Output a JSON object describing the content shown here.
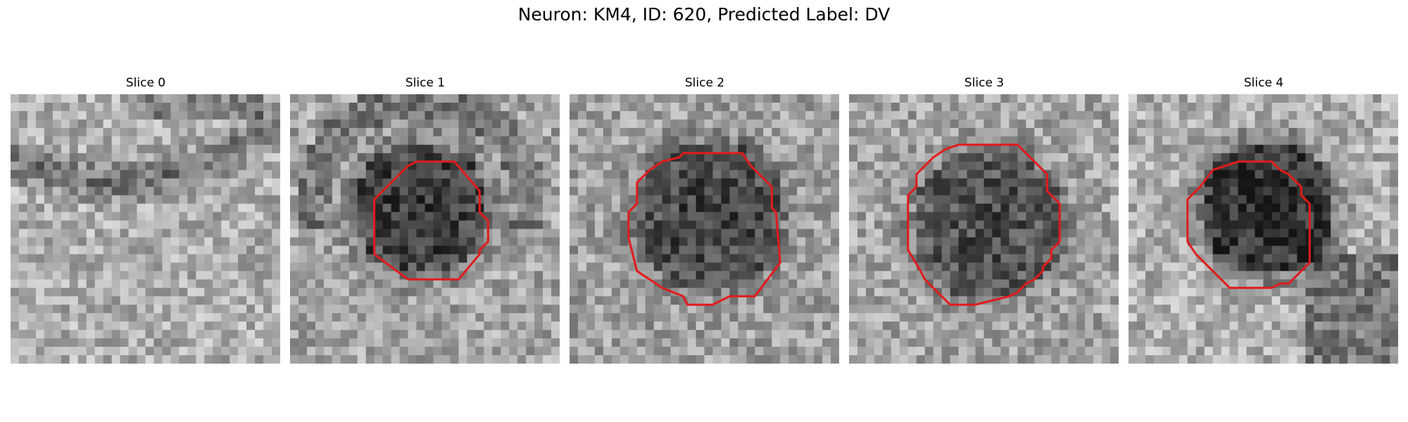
{
  "figure": {
    "title": "Neuron: KM4, ID: 620, Predicted Label: DV",
    "outline_color": "#e31a1c"
  },
  "panels": [
    {
      "title": "Slice 0"
    },
    {
      "title": "Slice 1"
    },
    {
      "title": "Slice 2"
    },
    {
      "title": "Slice 3"
    },
    {
      "title": "Slice 4"
    }
  ]
}
